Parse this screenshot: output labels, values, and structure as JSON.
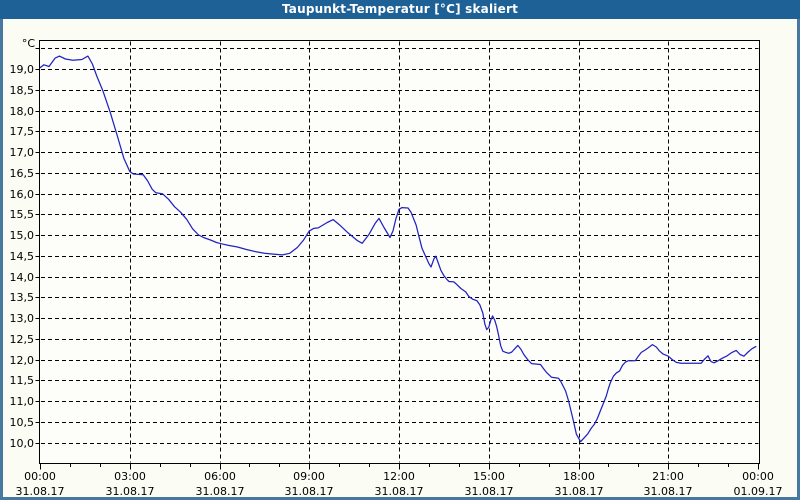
{
  "window": {
    "title": "Taupunkt-Temperatur [°C] skaliert",
    "colors": {
      "titlebar": "#1e6196",
      "title_text": "#ffffff",
      "border": "#4678a0",
      "background": "#fbfdf5",
      "plot_background": "#fdfefa",
      "axis": "#000000",
      "grid": "#000000",
      "series_line": "#2222c0"
    }
  },
  "chart_data": {
    "type": "line",
    "title": "Taupunkt-Temperatur [°C] skaliert",
    "y_unit_label": "°C",
    "grid": {
      "style": "dashed",
      "horizontal": true,
      "vertical": true
    },
    "legend": "none",
    "y_axis": {
      "tick_step": 0.5,
      "labeled_range": [
        10.0,
        19.0
      ],
      "top_unlabeled_gridline": 19.5,
      "visible_value_range": [
        9.5,
        19.7
      ],
      "tick_labels": [
        "19,0",
        "18,5",
        "18,0",
        "17,5",
        "17,0",
        "16,5",
        "16,0",
        "15,5",
        "15,0",
        "14,5",
        "14,0",
        "13,5",
        "13,0",
        "12,5",
        "12,0",
        "11,5",
        "11,0",
        "10,5",
        "10,0"
      ],
      "tick_values": [
        19.0,
        18.5,
        18.0,
        17.5,
        17.0,
        16.5,
        16.0,
        15.5,
        15.0,
        14.5,
        14.0,
        13.5,
        13.0,
        12.5,
        12.0,
        11.5,
        11.0,
        10.5,
        10.0
      ]
    },
    "x_axis": {
      "range_hours": [
        0,
        24
      ],
      "minor_tick_hours": 1,
      "major_tick_hours": 3,
      "major_ticks": [
        {
          "hour": 0,
          "time": "00:00",
          "date": "31.08.17"
        },
        {
          "hour": 3,
          "time": "03:00",
          "date": "31.08.17"
        },
        {
          "hour": 6,
          "time": "06:00",
          "date": "31.08.17"
        },
        {
          "hour": 9,
          "time": "09:00",
          "date": "31.08.17"
        },
        {
          "hour": 12,
          "time": "12:00",
          "date": "31.08.17"
        },
        {
          "hour": 15,
          "time": "15:00",
          "date": "31.08.17"
        },
        {
          "hour": 18,
          "time": "18:00",
          "date": "31.08.17"
        },
        {
          "hour": 21,
          "time": "21:00",
          "date": "31.08.17"
        },
        {
          "hour": 24,
          "time": "00:00",
          "date": "01.09.17"
        }
      ]
    },
    "series": [
      {
        "name": "Taupunkt-Temperatur",
        "points": [
          [
            0,
            19.03
          ],
          [
            0.13,
            19.1
          ],
          [
            0.3,
            19.06
          ],
          [
            0.5,
            19.26
          ],
          [
            0.65,
            19.31
          ],
          [
            0.85,
            19.24
          ],
          [
            1.1,
            19.21
          ],
          [
            1.4,
            19.23
          ],
          [
            1.6,
            19.31
          ],
          [
            1.75,
            19.12
          ],
          [
            1.9,
            18.83
          ],
          [
            2.1,
            18.48
          ],
          [
            2.35,
            17.95
          ],
          [
            2.6,
            17.35
          ],
          [
            2.8,
            16.85
          ],
          [
            3,
            16.53
          ],
          [
            3.12,
            16.47
          ],
          [
            3.45,
            16.45
          ],
          [
            3.6,
            16.3
          ],
          [
            3.75,
            16.1
          ],
          [
            3.87,
            16.02
          ],
          [
            4.1,
            15.99
          ],
          [
            4.3,
            15.86
          ],
          [
            4.5,
            15.68
          ],
          [
            4.7,
            15.55
          ],
          [
            4.9,
            15.38
          ],
          [
            5.1,
            15.15
          ],
          [
            5.3,
            15
          ],
          [
            5.5,
            14.93
          ],
          [
            5.7,
            14.88
          ],
          [
            5.9,
            14.82
          ],
          [
            6.05,
            14.79
          ],
          [
            6.3,
            14.75
          ],
          [
            6.6,
            14.71
          ],
          [
            6.9,
            14.65
          ],
          [
            7.2,
            14.6
          ],
          [
            7.5,
            14.56
          ],
          [
            7.8,
            14.54
          ],
          [
            8.1,
            14.52
          ],
          [
            8.35,
            14.56
          ],
          [
            8.6,
            14.7
          ],
          [
            8.8,
            14.87
          ],
          [
            9,
            15.1
          ],
          [
            9.15,
            15.16
          ],
          [
            9.3,
            15.17
          ],
          [
            9.6,
            15.3
          ],
          [
            9.8,
            15.37
          ],
          [
            10,
            15.25
          ],
          [
            10.3,
            15.05
          ],
          [
            10.6,
            14.87
          ],
          [
            10.77,
            14.8
          ],
          [
            11,
            15.02
          ],
          [
            11.2,
            15.28
          ],
          [
            11.33,
            15.4
          ],
          [
            11.5,
            15.18
          ],
          [
            11.7,
            14.94
          ],
          [
            11.8,
            15.1
          ],
          [
            11.9,
            15.4
          ],
          [
            12,
            15.62
          ],
          [
            12.1,
            15.66
          ],
          [
            12.3,
            15.65
          ],
          [
            12.4,
            15.55
          ],
          [
            12.57,
            15.24
          ],
          [
            12.67,
            14.96
          ],
          [
            12.77,
            14.68
          ],
          [
            12.9,
            14.47
          ],
          [
            13,
            14.31
          ],
          [
            13.07,
            14.23
          ],
          [
            13.17,
            14.43
          ],
          [
            13.23,
            14.49
          ],
          [
            13.3,
            14.35
          ],
          [
            13.4,
            14.15
          ],
          [
            13.5,
            14.02
          ],
          [
            13.6,
            13.93
          ],
          [
            13.67,
            13.88
          ],
          [
            13.83,
            13.87
          ],
          [
            13.93,
            13.81
          ],
          [
            14.07,
            13.71
          ],
          [
            14.23,
            13.63
          ],
          [
            14.33,
            13.52
          ],
          [
            14.47,
            13.45
          ],
          [
            14.6,
            13.42
          ],
          [
            14.7,
            13.32
          ],
          [
            14.8,
            13.12
          ],
          [
            14.87,
            12.85
          ],
          [
            14.93,
            12.72
          ],
          [
            15,
            12.78
          ],
          [
            15.07,
            12.95
          ],
          [
            15.13,
            13.05
          ],
          [
            15.2,
            12.95
          ],
          [
            15.27,
            12.78
          ],
          [
            15.33,
            12.58
          ],
          [
            15.4,
            12.33
          ],
          [
            15.47,
            12.2
          ],
          [
            15.57,
            12.17
          ],
          [
            15.67,
            12.15
          ],
          [
            15.77,
            12.18
          ],
          [
            15.87,
            12.26
          ],
          [
            15.97,
            12.34
          ],
          [
            16.07,
            12.25
          ],
          [
            16.17,
            12.12
          ],
          [
            16.3,
            12
          ],
          [
            16.43,
            11.9
          ],
          [
            16.73,
            11.88
          ],
          [
            16.83,
            11.78
          ],
          [
            16.93,
            11.69
          ],
          [
            17.1,
            11.57
          ],
          [
            17.33,
            11.55
          ],
          [
            17.4,
            11.48
          ],
          [
            17.57,
            11.24
          ],
          [
            17.67,
            11
          ],
          [
            17.83,
            10.52
          ],
          [
            17.93,
            10.2
          ],
          [
            18.07,
            10.02
          ],
          [
            18.17,
            10.1
          ],
          [
            18.3,
            10.2
          ],
          [
            18.43,
            10.35
          ],
          [
            18.53,
            10.44
          ],
          [
            18.63,
            10.58
          ],
          [
            18.73,
            10.76
          ],
          [
            18.83,
            10.94
          ],
          [
            18.93,
            11.12
          ],
          [
            19,
            11.3
          ],
          [
            19.07,
            11.45
          ],
          [
            19.17,
            11.6
          ],
          [
            19.27,
            11.68
          ],
          [
            19.37,
            11.72
          ],
          [
            19.47,
            11.86
          ],
          [
            19.57,
            11.94
          ],
          [
            19.67,
            11.97
          ],
          [
            19.9,
            11.97
          ],
          [
            20,
            12.08
          ],
          [
            20.1,
            12.17
          ],
          [
            20.23,
            12.23
          ],
          [
            20.33,
            12.28
          ],
          [
            20.47,
            12.36
          ],
          [
            20.6,
            12.3
          ],
          [
            20.7,
            12.21
          ],
          [
            20.83,
            12.13
          ],
          [
            21,
            12.08
          ],
          [
            21.13,
            12
          ],
          [
            21.27,
            11.93
          ],
          [
            21.43,
            11.91
          ],
          [
            22.1,
            11.91
          ],
          [
            22.2,
            12
          ],
          [
            22.33,
            12.09
          ],
          [
            22.43,
            11.95
          ],
          [
            22.53,
            11.92
          ],
          [
            22.67,
            11.97
          ],
          [
            22.8,
            12.03
          ],
          [
            22.97,
            12.09
          ],
          [
            23.13,
            12.17
          ],
          [
            23.27,
            12.22
          ],
          [
            23.4,
            12.12
          ],
          [
            23.53,
            12.08
          ],
          [
            23.67,
            12.18
          ],
          [
            23.8,
            12.26
          ],
          [
            23.93,
            12.31
          ]
        ]
      }
    ]
  }
}
